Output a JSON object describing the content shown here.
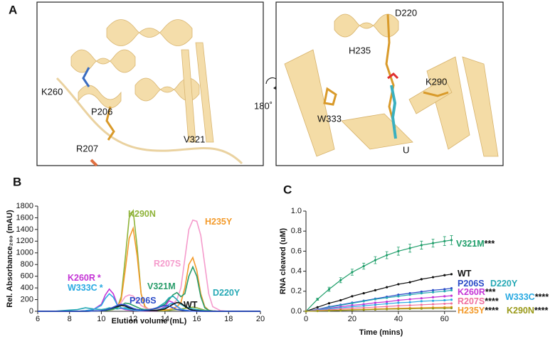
{
  "panel_labels": [
    "A",
    "B",
    "C"
  ],
  "structure": {
    "left_labels": [
      "K260",
      "P206",
      "R207",
      "V321"
    ],
    "rotation": "180˚",
    "right_labels": [
      "D220",
      "H235",
      "K290",
      "W333",
      "U"
    ]
  },
  "chart_data": [
    {
      "type": "line",
      "xlabel": "Elution volume (mL)",
      "ylabel": "Rel. Absorbance₂₈₀ (mAU)",
      "xlim": [
        6,
        20
      ],
      "xticks": [
        6,
        8,
        10,
        12,
        14,
        16,
        18,
        20
      ],
      "ylim": [
        0,
        1800
      ],
      "yticks": [
        0,
        200,
        400,
        600,
        800,
        1000,
        1200,
        1400,
        1600,
        1800
      ],
      "x": [
        6,
        7,
        8,
        8.5,
        9,
        9.5,
        10,
        10.25,
        10.5,
        10.75,
        11,
        11.25,
        11.5,
        11.75,
        12,
        12.25,
        12.5,
        12.75,
        13,
        13.5,
        14,
        14.25,
        14.5,
        14.75,
        15,
        15.25,
        15.5,
        15.75,
        16,
        16.25,
        16.5,
        16.75,
        17,
        17.5,
        18,
        19,
        20
      ],
      "series": [
        {
          "name": "K290N",
          "color": "#8fb339",
          "values": [
            0,
            0,
            0,
            0,
            0,
            5,
            10,
            15,
            20,
            30,
            60,
            250,
            900,
            1600,
            1720,
            1100,
            300,
            60,
            20,
            10,
            10,
            15,
            25,
            30,
            40,
            50,
            60,
            70,
            60,
            40,
            20,
            10,
            5,
            0,
            0,
            0,
            0
          ]
        },
        {
          "name": "H235Y",
          "color": "#f39a2a",
          "values": [
            0,
            0,
            0,
            0,
            0,
            5,
            10,
            20,
            40,
            50,
            70,
            200,
            700,
            1250,
            1420,
            950,
            300,
            80,
            30,
            20,
            20,
            30,
            50,
            80,
            150,
            400,
            800,
            920,
            700,
            300,
            80,
            20,
            5,
            0,
            0,
            0,
            0
          ]
        },
        {
          "name": "R207S",
          "color": "#f59bcc",
          "values": [
            0,
            0,
            0,
            0,
            0,
            5,
            10,
            20,
            30,
            50,
            80,
            150,
            250,
            280,
            260,
            180,
            100,
            60,
            40,
            40,
            60,
            80,
            120,
            200,
            400,
            900,
            1400,
            1560,
            1540,
            1300,
            800,
            300,
            80,
            10,
            0,
            0,
            0
          ]
        },
        {
          "name": "V321M",
          "color": "#2a9d6b",
          "values": [
            0,
            0,
            0,
            0,
            0,
            5,
            10,
            15,
            25,
            40,
            60,
            100,
            140,
            130,
            100,
            70,
            40,
            30,
            30,
            50,
            120,
            200,
            280,
            320,
            250,
            300,
            600,
            760,
            600,
            250,
            60,
            15,
            5,
            0,
            0,
            0,
            0
          ]
        },
        {
          "name": "D220Y",
          "color": "#26a9b5",
          "values": [
            0,
            0,
            20,
            30,
            60,
            40,
            30,
            40,
            60,
            50,
            40,
            50,
            60,
            50,
            40,
            30,
            20,
            20,
            20,
            60,
            150,
            230,
            260,
            200,
            120,
            80,
            60,
            40,
            30,
            20,
            10,
            5,
            0,
            0,
            0,
            0,
            0
          ]
        },
        {
          "name": "K260R",
          "annotation": "*",
          "color": "#c434d6",
          "values": [
            0,
            0,
            0,
            0,
            10,
            30,
            120,
            280,
            380,
            300,
            120,
            50,
            30,
            20,
            15,
            10,
            5,
            5,
            5,
            10,
            80,
            180,
            150,
            80,
            40,
            20,
            10,
            5,
            5,
            0,
            0,
            0,
            0,
            0,
            0,
            0,
            0
          ]
        },
        {
          "name": "W333C",
          "annotation": "*",
          "color": "#2aaae2",
          "values": [
            0,
            0,
            0,
            0,
            10,
            30,
            100,
            220,
            300,
            240,
            110,
            60,
            40,
            30,
            20,
            15,
            10,
            10,
            10,
            20,
            60,
            120,
            140,
            90,
            40,
            20,
            10,
            5,
            5,
            0,
            0,
            0,
            0,
            0,
            0,
            0,
            0
          ]
        },
        {
          "name": "WT",
          "color": "#111111",
          "values": [
            0,
            0,
            0,
            0,
            0,
            5,
            10,
            20,
            40,
            60,
            80,
            100,
            90,
            60,
            40,
            30,
            20,
            10,
            10,
            15,
            40,
            80,
            120,
            150,
            140,
            90,
            40,
            20,
            10,
            5,
            0,
            0,
            0,
            0,
            0,
            0,
            0
          ]
        },
        {
          "name": "P206S",
          "color": "#2a4bc8",
          "values": [
            0,
            0,
            0,
            0,
            0,
            5,
            10,
            20,
            40,
            70,
            100,
            120,
            110,
            80,
            50,
            30,
            20,
            15,
            20,
            60,
            100,
            90,
            60,
            30,
            20,
            10,
            5,
            5,
            0,
            0,
            0,
            0,
            0,
            0,
            0,
            0,
            0
          ]
        }
      ]
    },
    {
      "type": "line",
      "xlabel": "Time (mins)",
      "ylabel": "RNA cleaved (uM)",
      "markers": true,
      "xlim": [
        0,
        65
      ],
      "xticks": [
        0,
        20,
        40,
        60
      ],
      "ylim": [
        0,
        1
      ],
      "yticks": [
        {
          "value": 0,
          "label": "0.0"
        },
        0.2,
        0.4,
        0.6,
        0.8,
        {
          "value": 1,
          "label": "1.0"
        }
      ],
      "x": [
        0,
        5,
        10,
        15,
        20,
        25,
        30,
        35,
        40,
        45,
        50,
        55,
        60,
        63
      ],
      "series": [
        {
          "name": "V321M",
          "annotation": "***",
          "color": "#1f9e6a",
          "values": [
            0,
            0.12,
            0.22,
            0.31,
            0.39,
            0.45,
            0.51,
            0.56,
            0.6,
            0.63,
            0.66,
            0.68,
            0.7,
            0.71
          ],
          "errors": [
            0,
            0.01,
            0.02,
            0.025,
            0.03,
            0.03,
            0.035,
            0.035,
            0.04,
            0.04,
            0.04,
            0.04,
            0.045,
            0.045
          ]
        },
        {
          "name": "WT",
          "color": "#111111",
          "values": [
            0,
            0.04,
            0.08,
            0.11,
            0.15,
            0.18,
            0.21,
            0.24,
            0.27,
            0.29,
            0.32,
            0.34,
            0.36,
            0.37
          ]
        },
        {
          "name": "P206S",
          "color": "#2a4bc8",
          "values": [
            0,
            0.02,
            0.045,
            0.065,
            0.085,
            0.105,
            0.125,
            0.145,
            0.165,
            0.18,
            0.195,
            0.21,
            0.22,
            0.23
          ]
        },
        {
          "name": "D220Y",
          "color": "#26a9b5",
          "values": [
            0,
            0.018,
            0.04,
            0.06,
            0.08,
            0.1,
            0.12,
            0.135,
            0.15,
            0.165,
            0.18,
            0.19,
            0.2,
            0.21
          ]
        },
        {
          "name": "K260R",
          "annotation": "***",
          "color": "#c434d6",
          "values": [
            0,
            0.015,
            0.03,
            0.045,
            0.06,
            0.07,
            0.085,
            0.095,
            0.11,
            0.12,
            0.13,
            0.14,
            0.15,
            0.155
          ]
        },
        {
          "name": "W333C",
          "annotation": "****",
          "color": "#2aaae2",
          "values": [
            0,
            0.012,
            0.025,
            0.035,
            0.045,
            0.055,
            0.065,
            0.075,
            0.085,
            0.09,
            0.1,
            0.105,
            0.11,
            0.115
          ]
        },
        {
          "name": "R207S",
          "annotation": "****",
          "color": "#f0709f",
          "values": [
            0,
            0.008,
            0.015,
            0.022,
            0.03,
            0.036,
            0.042,
            0.048,
            0.055,
            0.06,
            0.065,
            0.07,
            0.075,
            0.078
          ]
        },
        {
          "name": "H235Y",
          "annotation": "****",
          "color": "#f39a2a",
          "values": [
            0,
            0.004,
            0.008,
            0.012,
            0.016,
            0.02,
            0.024,
            0.027,
            0.03,
            0.033,
            0.036,
            0.038,
            0.04,
            0.042
          ]
        },
        {
          "name": "K290N",
          "annotation": "****",
          "color": "#9a9a1a",
          "values": [
            0,
            0.003,
            0.006,
            0.009,
            0.012,
            0.015,
            0.018,
            0.021,
            0.023,
            0.025,
            0.027,
            0.029,
            0.03,
            0.032
          ]
        }
      ]
    }
  ]
}
